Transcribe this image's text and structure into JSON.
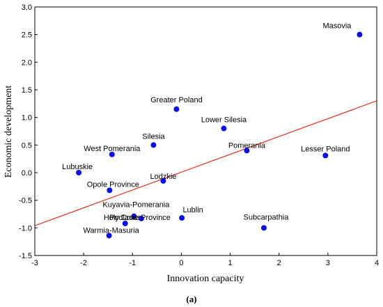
{
  "chart_data": {
    "type": "scatter",
    "title": "",
    "xlabel": "Innovation capacity",
    "ylabel": "Economic development",
    "xlim": [
      -3,
      4
    ],
    "ylim": [
      -1.5,
      3.0
    ],
    "xticks": [
      -3,
      -2,
      -1,
      0,
      1,
      2,
      3,
      4
    ],
    "yticks": [
      -1.5,
      -1.0,
      -0.5,
      0.0,
      0.5,
      1.0,
      1.5,
      2.0,
      2.5,
      3.0
    ],
    "grid": false,
    "marker_color": "#0a10e8",
    "trend_color": "#e8301e",
    "trendline": {
      "x": [
        -3,
        4
      ],
      "y": [
        -0.96,
        1.3
      ]
    },
    "points": [
      {
        "label": "Masovia",
        "x": 3.65,
        "y": 2.5
      },
      {
        "label": "Greater Poland",
        "x": -0.1,
        "y": 1.15
      },
      {
        "label": "Lower Silesia",
        "x": 0.87,
        "y": 0.8
      },
      {
        "label": "Silesia",
        "x": -0.57,
        "y": 0.5
      },
      {
        "label": "West Pomerania",
        "x": -1.42,
        "y": 0.33
      },
      {
        "label": "Pomerania",
        "x": 1.34,
        "y": 0.4
      },
      {
        "label": "Lesser Poland",
        "x": 2.95,
        "y": 0.31
      },
      {
        "label": "Lubuskie",
        "x": -2.1,
        "y": 0.0
      },
      {
        "label": "Lodzkie",
        "x": -0.37,
        "y": -0.15
      },
      {
        "label": "Opole Province",
        "x": -1.47,
        "y": -0.32
      },
      {
        "label": "Kuyavia-Pomerania",
        "x": -0.97,
        "y": -0.79
      },
      {
        "label": "Holy Cross",
        "x": -1.15,
        "y": -0.92
      },
      {
        "label": "Podlasie Province",
        "x": -0.82,
        "y": -0.83
      },
      {
        "label": "Lublin",
        "x": 0.01,
        "y": -0.82
      },
      {
        "label": "Subcarpathia",
        "x": 1.69,
        "y": -1.0
      },
      {
        "label": "Warmia-Masuria",
        "x": -1.48,
        "y": -1.14
      }
    ]
  },
  "caption": "(a)"
}
